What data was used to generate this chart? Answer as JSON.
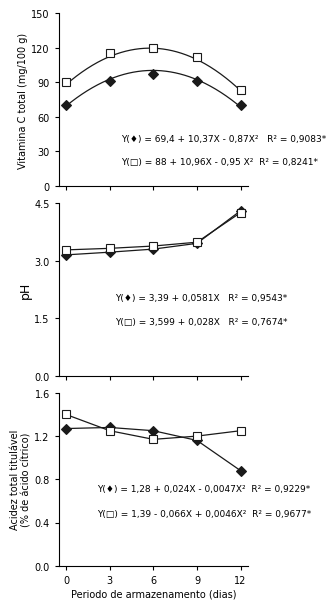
{
  "x": [
    0,
    3,
    6,
    9,
    12
  ],
  "vitC_diamond": [
    70,
    91,
    97,
    91,
    70
  ],
  "vitC_square": [
    90,
    115,
    120,
    112,
    83
  ],
  "vitC_ylim": [
    0,
    150
  ],
  "vitC_yticks": [
    0,
    30,
    60,
    90,
    120,
    150
  ],
  "vitC_ylabel": "Vitamina C total (mg/100 g)",
  "vitC_eq1": "Y(♦) = 69,4 + 10,37X - 0,87X²   R² = 0,9083*",
  "vitC_eq2": "Y(□) = 88 + 10,96X - 0,95 X²  R² = 0,8241*",
  "vitC_c1": [
    69.4,
    10.37,
    -0.87
  ],
  "vitC_c2": [
    88.0,
    10.96,
    -0.95
  ],
  "ph_diamond": [
    3.15,
    3.22,
    3.3,
    3.45,
    4.3
  ],
  "ph_square": [
    3.28,
    3.32,
    3.38,
    3.48,
    4.25
  ],
  "ph_ylim": [
    0.0,
    4.5
  ],
  "ph_yticks": [
    0.0,
    1.5,
    3.0,
    4.5
  ],
  "ph_ylabel": "pH",
  "ph_eq1": "Y(♦) = 3,39 + 0,0581X   R² = 0,9543*",
  "ph_eq2": "Y(□) = 3,599 + 0,028X   R² = 0,7674*",
  "ph_c1": [
    3.39,
    0.0581
  ],
  "ph_c2": [
    3.599,
    0.028
  ],
  "acid_diamond": [
    1.27,
    1.28,
    1.25,
    1.16,
    0.88
  ],
  "acid_square": [
    1.4,
    1.25,
    1.17,
    1.2,
    1.25
  ],
  "acid_ylim": [
    0.0,
    1.6
  ],
  "acid_yticks": [
    0.0,
    0.4,
    0.8,
    1.2,
    1.6
  ],
  "acid_ylabel": "Acidez total titulável\n(% de ácido cítrico)",
  "acid_eq1": "Y(♦) = 1,28 + 0,024X - 0,0047X²  R² = 0,9229*",
  "acid_eq2": "Y(□) = 1,39 - 0,066X + 0,0046X²  R² = 0,9677*",
  "acid_c1": [
    1.28,
    0.024,
    -0.0047
  ],
  "acid_c2": [
    1.39,
    -0.066,
    0.0046
  ],
  "xlabel": "Periodo de armazenamento (dias)",
  "xticks": [
    0,
    3,
    6,
    9,
    12
  ],
  "line_color": "#1a1a1a",
  "fill_diamond": "#1a1a1a",
  "fill_square": "white",
  "marker_size": 5,
  "fontsize": 7.0
}
